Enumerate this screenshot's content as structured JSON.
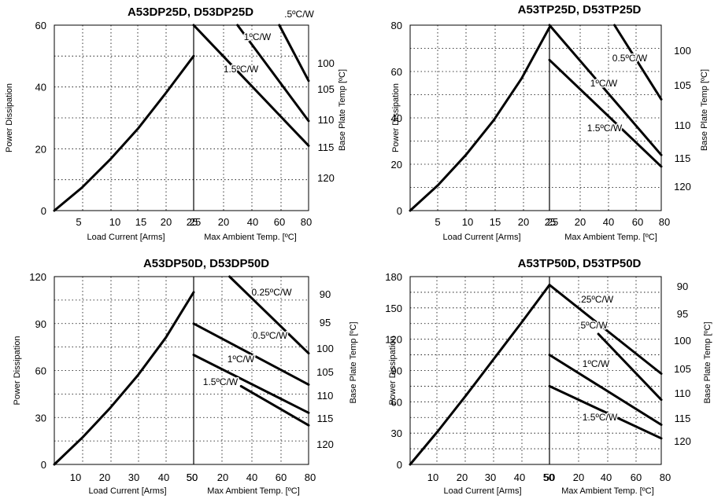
{
  "chart_data": [
    {
      "type": "line",
      "title": "A53DP25D, D53DP25D",
      "ylabel": "Power Dissipation",
      "ylim": [
        0,
        60
      ],
      "y_ticks": [
        "0",
        "20",
        "40",
        "60"
      ],
      "left_panel": {
        "xlabel": "Load Current  [Arms]",
        "xlim": [
          0,
          25
        ],
        "x_ticks": [
          "5",
          "10",
          "15",
          "20",
          "25"
        ],
        "series": [
          {
            "x": [
              0,
              5,
              10,
              15,
              20,
              25
            ],
            "y": [
              0,
              7.5,
              16.5,
              26.5,
              38,
              50
            ]
          }
        ]
      },
      "right_panel": {
        "xlabel": "Max Ambient Temp. [ºC]",
        "xlim": [
          25,
          80
        ],
        "x_ticks": [
          "25",
          "20",
          "40",
          "60",
          "80"
        ],
        "series": [
          {
            "name": ".5ºC/W",
            "x": [
              66,
              80
            ],
            "y": [
              60,
              42
            ]
          },
          {
            "name": "1ºC/W",
            "x": [
              46,
              80
            ],
            "y": [
              60,
              29
            ]
          },
          {
            "name": "1.5ºC/W",
            "x": [
              25,
              80
            ],
            "y": [
              60,
              21
            ]
          }
        ]
      },
      "secondary_axis": {
        "label": "Base Plate Temp [ºC]",
        "ticks": [
          "100",
          "105",
          "110",
          "115",
          "120"
        ]
      }
    },
    {
      "type": "line",
      "title": "A53TP25D, D53TP25D",
      "ylabel": "Power Dissipation",
      "ylim": [
        0,
        80
      ],
      "y_ticks": [
        "0",
        "20",
        "40",
        "60",
        "80"
      ],
      "left_panel": {
        "xlabel": "Load Current  [Arms]",
        "xlim": [
          0,
          25
        ],
        "x_ticks": [
          "5",
          "10",
          "15",
          "20",
          "25"
        ],
        "series": [
          {
            "x": [
              0,
              5,
              10,
              15,
              20,
              25
            ],
            "y": [
              0,
              11,
              24,
              39,
              57,
              79
            ]
          }
        ]
      },
      "right_panel": {
        "xlabel": "Max Ambient Temp. [ºC]",
        "xlim": [
          25,
          80
        ],
        "x_ticks": [
          "25",
          "20",
          "40",
          "60",
          "80"
        ],
        "series": [
          {
            "name": "0.5ºC/W",
            "x": [
              57,
              80
            ],
            "y": [
              80,
              48
            ]
          },
          {
            "name": "1ºC/W",
            "x": [
              25,
              80
            ],
            "y": [
              80,
              24
            ]
          },
          {
            "name": "1.5ºC/W",
            "x": [
              25,
              80
            ],
            "y": [
              65,
              19
            ]
          }
        ]
      },
      "secondary_axis": {
        "label": "Base Plate Temp [ºC]",
        "ticks": [
          "100",
          "105",
          "110",
          "115",
          "120"
        ]
      }
    },
    {
      "type": "line",
      "title": "A53DP50D, D53DP50D",
      "ylabel": "Power Dissipation",
      "ylim": [
        0,
        120
      ],
      "y_ticks": [
        "0",
        "30",
        "60",
        "90",
        "120"
      ],
      "left_panel": {
        "xlabel": "Load Current  [Arms]",
        "xlim": [
          0,
          50
        ],
        "x_ticks": [
          "10",
          "20",
          "30",
          "40",
          "50"
        ],
        "series": [
          {
            "x": [
              0,
              10,
              20,
              30,
              40,
              50
            ],
            "y": [
              0,
              17,
              36,
              57,
              81,
              110
            ]
          }
        ]
      },
      "right_panel": {
        "xlabel": "Max Ambient Temp. [ºC]",
        "xlim": [
          0,
          80
        ],
        "x_ticks": [
          "50",
          "20",
          "40",
          "60",
          "80"
        ],
        "series": [
          {
            "name": "0.25ºC/W",
            "x": [
              25,
              80
            ],
            "y": [
              120,
              71
            ]
          },
          {
            "name": "0.5ºC/W",
            "x": [
              0,
              80
            ],
            "y": [
              90,
              51
            ]
          },
          {
            "name": "1ºC/W",
            "x": [
              0,
              80
            ],
            "y": [
              70,
              33
            ]
          },
          {
            "name": "1.5ºC/W",
            "x": [
              33,
              80
            ],
            "y": [
              50,
              25
            ]
          }
        ]
      },
      "secondary_axis": {
        "label": "Base Plate Temp [ºC]",
        "ticks": [
          "90",
          "95",
          "100",
          "105",
          "110",
          "115",
          "120"
        ]
      }
    },
    {
      "type": "line",
      "title": "A53TP50D, D53TP50D",
      "ylabel": "Power Dissipation",
      "ylim": [
        0,
        180
      ],
      "y_ticks": [
        "0",
        "30",
        "60",
        "90",
        "120",
        "150",
        "180"
      ],
      "left_panel": {
        "xlabel": "Load Current  [Arms]",
        "xlim": [
          0,
          50
        ],
        "x_ticks": [
          "10",
          "20",
          "30",
          "40",
          "50"
        ],
        "series": [
          {
            "x": [
              0,
              10,
              20,
              30,
              40,
              50
            ],
            "y": [
              0,
              32,
              66,
              101,
              136,
              172
            ]
          }
        ]
      },
      "right_panel": {
        "xlabel": "Max Ambient Temp. [ºC]",
        "xlim": [
          0,
          80
        ],
        "x_ticks": [
          "50",
          "20",
          "40",
          "60",
          "80"
        ],
        "series": [
          {
            "name": ".25ºC/W",
            "x": [
              0,
              80
            ],
            "y": [
              172,
              87
            ]
          },
          {
            "name": ".5ºC/W",
            "x": [
              35,
              80
            ],
            "y": [
              125,
              62
            ]
          },
          {
            "name": "1ºC/W",
            "x": [
              0,
              80
            ],
            "y": [
              105,
              38
            ]
          },
          {
            "name": "1.5ºC/W",
            "x": [
              0,
              80
            ],
            "y": [
              75,
              25
            ]
          }
        ]
      },
      "secondary_axis": {
        "label": "Base Plate Temp [ºC]",
        "ticks": [
          "90",
          "95",
          "100",
          "105",
          "110",
          "115",
          "120"
        ]
      }
    }
  ]
}
